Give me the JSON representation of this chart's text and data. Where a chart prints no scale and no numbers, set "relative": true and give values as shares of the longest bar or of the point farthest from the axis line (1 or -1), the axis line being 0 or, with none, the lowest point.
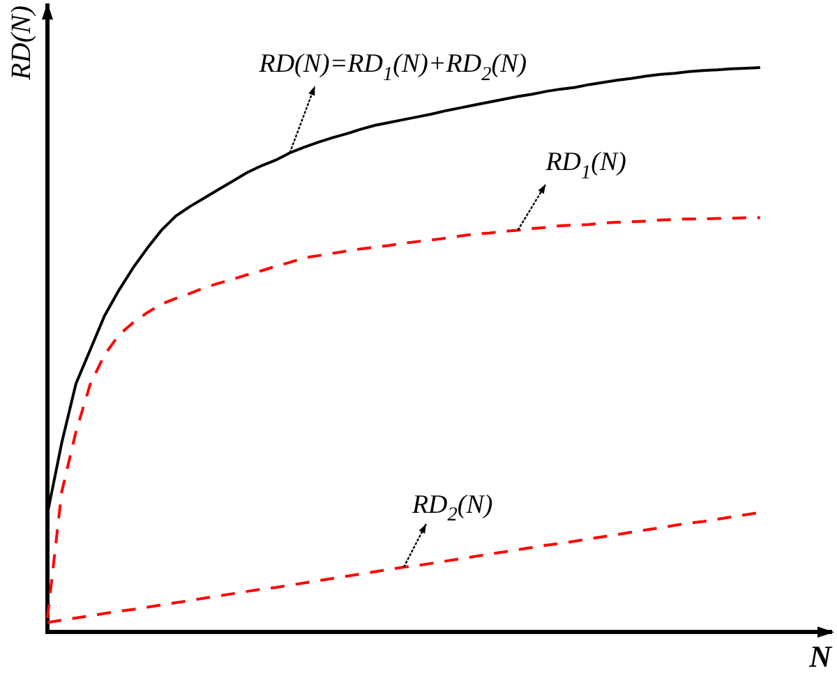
{
  "chart_data": {
    "type": "line",
    "relative": true,
    "xlabel": "N",
    "ylabel": "RD(N)",
    "grid": false,
    "legend": false,
    "marker": "none",
    "categories": [
      null,
      null,
      null,
      null,
      null,
      null,
      null,
      null,
      null,
      null,
      null,
      null,
      null,
      null,
      null,
      null,
      null,
      null,
      null,
      null,
      null,
      null,
      null,
      null,
      null,
      null,
      null,
      null,
      null,
      null,
      null,
      null,
      null,
      null,
      null,
      null,
      null,
      null,
      null,
      null,
      null,
      null,
      null,
      null,
      null,
      null,
      null,
      null,
      null,
      null,
      null,
      null,
      null,
      null,
      null,
      null
    ],
    "series": [
      {
        "name": "RD(N)=RD$_{1}$(N)+RD$_{2}$(N)",
        "color": "#000000",
        "line_style": "solid",
        "values": [
          0.21,
          0.335,
          0.44,
          0.5,
          0.56,
          0.605,
          0.645,
          0.68,
          0.712,
          0.737,
          0.754,
          0.769,
          0.784,
          0.799,
          0.814,
          0.826,
          0.836,
          0.849,
          0.859,
          0.868,
          0.876,
          0.883,
          0.891,
          0.898,
          0.903,
          0.908,
          0.913,
          0.918,
          0.924,
          0.929,
          0.934,
          0.939,
          0.944,
          0.949,
          0.953,
          0.958,
          0.962,
          0.965,
          0.97,
          0.974,
          0.978,
          0.981,
          0.985,
          0.988,
          0.99,
          0.993,
          0.995,
          0.996,
          0.998,
          0.999,
          1,
          null,
          null,
          null,
          null,
          null
        ]
      },
      {
        "name": "RD$_{1}$(N)",
        "color": "#ff0000",
        "line_style": "dashed",
        "values": [
          0.025,
          0.248,
          0.355,
          0.439,
          0.491,
          0.526,
          0.548,
          0.566,
          0.581,
          0.591,
          0.6,
          0.61,
          0.618,
          0.625,
          0.633,
          0.64,
          0.648,
          0.655,
          0.663,
          0.667,
          0.671,
          0.675,
          0.679,
          0.682,
          0.685,
          0.689,
          0.692,
          0.695,
          0.698,
          0.702,
          0.705,
          0.707,
          0.71,
          0.712,
          0.715,
          0.717,
          0.72,
          0.721,
          0.722,
          0.725,
          0.726,
          0.727,
          0.728,
          0.73,
          0.731,
          0.732,
          0.732,
          0.733,
          0.733,
          0.734,
          0.734,
          null,
          null,
          null,
          null,
          null
        ]
      },
      {
        "name": "RD$_{2}$(N)",
        "color": "#ff0000",
        "line_style": "dashed",
        "values": [
          0.017,
          0.021,
          0.025,
          0.029,
          0.033,
          0.037,
          0.04,
          0.044,
          0.048,
          0.052,
          0.056,
          0.06,
          0.064,
          0.068,
          0.072,
          0.076,
          0.079,
          0.083,
          0.087,
          0.091,
          0.095,
          0.099,
          0.103,
          0.107,
          0.111,
          0.115,
          0.118,
          0.122,
          0.126,
          0.13,
          0.134,
          0.138,
          0.142,
          0.146,
          0.15,
          0.154,
          0.157,
          0.161,
          0.165,
          0.169,
          0.173,
          0.177,
          0.181,
          0.185,
          0.189,
          0.193,
          0.196,
          0.2,
          0.204,
          0.208,
          0.212,
          null,
          null,
          null,
          null,
          null
        ]
      }
    ]
  }
}
